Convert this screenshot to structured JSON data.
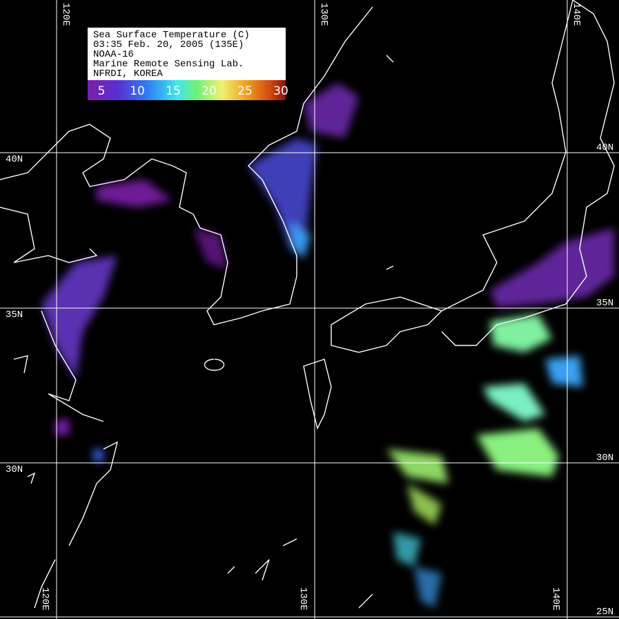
{
  "legend": {
    "lines": [
      "Sea Surface Temperature (C)",
      "03:35 Feb. 20, 2005 (135E)",
      "NOAA-16",
      "Marine Remote Sensing Lab.",
      "NFRDI, KOREA"
    ],
    "colorbar": {
      "labels": [
        5,
        10,
        15,
        20,
        25,
        30
      ]
    }
  },
  "grid": {
    "longitudes": [
      "120E",
      "130E",
      "140E"
    ],
    "latitudes": [
      "40N",
      "35N",
      "30N",
      "25N"
    ]
  }
}
